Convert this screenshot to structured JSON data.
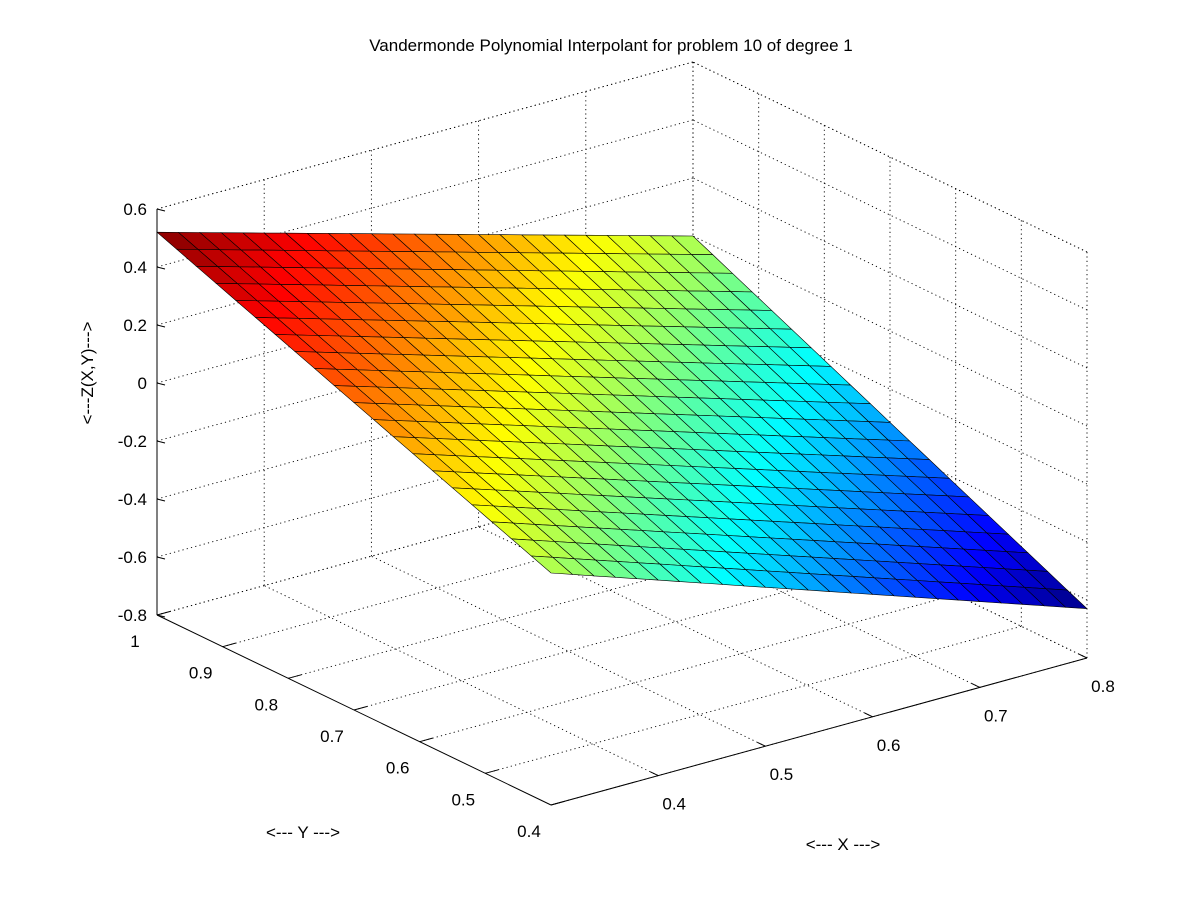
{
  "chart_data": {
    "type": "surface",
    "title": "Vandermonde Polynomial Interpolant for problem 10 of degree 1",
    "xlabel": "<--- X --->",
    "ylabel": "<--- Y --->",
    "zlabel": "<---Z(X,Y)--->",
    "xlim": [
      0.3,
      0.8
    ],
    "ylim": [
      0.4,
      1.0
    ],
    "zlim": [
      -0.8,
      0.6
    ],
    "x_ticks": [
      0.4,
      0.5,
      0.6,
      0.7,
      0.8
    ],
    "y_ticks": [
      0.4,
      0.5,
      0.6,
      0.7,
      0.8,
      0.9,
      1
    ],
    "z_ticks": [
      -0.8,
      -0.6,
      -0.4,
      -0.2,
      0,
      0.2,
      0.4,
      0.6
    ],
    "x_tick_labels": [
      "0.4",
      "0.5",
      "0.6",
      "0.7",
      "0.8"
    ],
    "y_tick_labels": [
      "0.4",
      "0.5",
      "0.6",
      "0.7",
      "0.8",
      "0.9",
      "1"
    ],
    "z_tick_labels": [
      "-0.8",
      "-0.6",
      "-0.4",
      "-0.2",
      "0",
      "0.2",
      "0.4",
      "0.6"
    ],
    "grid": true,
    "colormap": "jet",
    "surface": {
      "x_range": [
        0.3,
        0.8
      ],
      "y_range": [
        0.4,
        1.0
      ],
      "x_count": 26,
      "y_count": 21,
      "z_corners": {
        "x_min_y_min": 0.0,
        "x_max_y_min": -0.63,
        "x_min_y_max": 0.52,
        "x_max_y_max": 0.0
      }
    }
  }
}
